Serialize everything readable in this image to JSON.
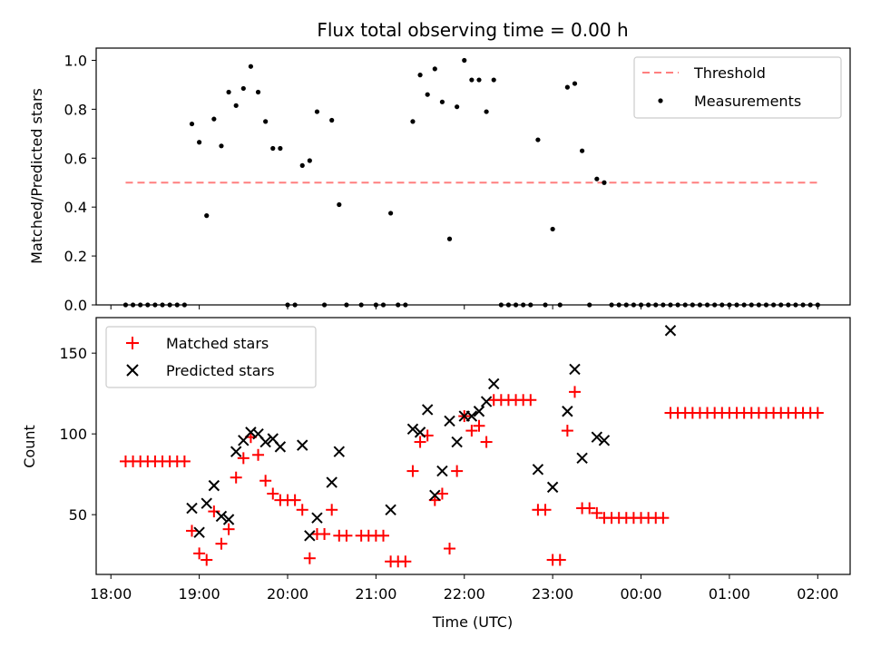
{
  "chart_data": [
    {
      "type": "scatter",
      "title": "Flux total observing time = 0.00 h",
      "xlabel": "",
      "ylabel": "Matched/Predicted stars",
      "ylim": [
        0,
        1.05
      ],
      "yticks": [
        "0.0",
        "0.2",
        "0.4",
        "0.6",
        "0.8",
        "1.0"
      ],
      "xticks_shown": false,
      "legend": {
        "placement": "top-right",
        "entries": [
          "Threshold",
          "Measurements"
        ]
      },
      "threshold": {
        "name": "Threshold",
        "value": 0.5,
        "x_start": "18:10",
        "x_end": "02:02",
        "color": "#ff7f7f",
        "style": "dashed"
      },
      "series": [
        {
          "name": "Measurements",
          "color": "#000000",
          "points": [
            [
              "18:10",
              0
            ],
            [
              "18:15",
              0
            ],
            [
              "18:20",
              0
            ],
            [
              "18:25",
              0
            ],
            [
              "18:30",
              0
            ],
            [
              "18:35",
              0
            ],
            [
              "18:40",
              0
            ],
            [
              "18:45",
              0
            ],
            [
              "18:50",
              0
            ],
            [
              "18:55",
              0.74
            ],
            [
              "19:00",
              0.665
            ],
            [
              "19:05",
              0.365
            ],
            [
              "19:10",
              0.76
            ],
            [
              "19:15",
              0.65
            ],
            [
              "19:20",
              0.87
            ],
            [
              "19:25",
              0.815
            ],
            [
              "19:30",
              0.885
            ],
            [
              "19:35",
              0.975
            ],
            [
              "19:40",
              0.87
            ],
            [
              "19:45",
              0.75
            ],
            [
              "19:50",
              0.64
            ],
            [
              "19:55",
              0.64
            ],
            [
              "20:00",
              0
            ],
            [
              "20:05",
              0
            ],
            [
              "20:10",
              0.57
            ],
            [
              "20:15",
              0.59
            ],
            [
              "20:20",
              0.79
            ],
            [
              "20:25",
              0
            ],
            [
              "20:30",
              0.755
            ],
            [
              "20:35",
              0.41
            ],
            [
              "20:40",
              0
            ],
            [
              "20:50",
              0
            ],
            [
              "21:00",
              0
            ],
            [
              "21:05",
              0
            ],
            [
              "21:10",
              0.375
            ],
            [
              "21:15",
              0
            ],
            [
              "21:20",
              0
            ],
            [
              "21:25",
              0.75
            ],
            [
              "21:30",
              0.94
            ],
            [
              "21:35",
              0.86
            ],
            [
              "21:40",
              0.965
            ],
            [
              "21:45",
              0.83
            ],
            [
              "21:50",
              0.27
            ],
            [
              "21:55",
              0.81
            ],
            [
              "22:00",
              1.0
            ],
            [
              "22:05",
              0.92
            ],
            [
              "22:10",
              0.92
            ],
            [
              "22:15",
              0.79
            ],
            [
              "22:20",
              0.92
            ],
            [
              "22:25",
              0
            ],
            [
              "22:30",
              0
            ],
            [
              "22:35",
              0
            ],
            [
              "22:40",
              0
            ],
            [
              "22:45",
              0
            ],
            [
              "22:50",
              0.675
            ],
            [
              "22:55",
              0
            ],
            [
              "23:00",
              0.31
            ],
            [
              "23:05",
              0
            ],
            [
              "23:10",
              0.89
            ],
            [
              "23:15",
              0.905
            ],
            [
              "23:20",
              0.63
            ],
            [
              "23:25",
              0
            ],
            [
              "23:30",
              0.515
            ],
            [
              "23:35",
              0.5
            ],
            [
              "23:40",
              0
            ],
            [
              "23:45",
              0
            ],
            [
              "23:50",
              0
            ],
            [
              "23:55",
              0
            ],
            [
              "00:00",
              0
            ],
            [
              "00:05",
              0
            ],
            [
              "00:10",
              0
            ],
            [
              "00:15",
              0
            ],
            [
              "00:20",
              0
            ],
            [
              "00:25",
              0
            ],
            [
              "00:30",
              0
            ],
            [
              "00:35",
              0
            ],
            [
              "00:40",
              0
            ],
            [
              "00:45",
              0
            ],
            [
              "00:50",
              0
            ],
            [
              "00:55",
              0
            ],
            [
              "01:00",
              0
            ],
            [
              "01:05",
              0
            ],
            [
              "01:10",
              0
            ],
            [
              "01:15",
              0
            ],
            [
              "01:20",
              0
            ],
            [
              "01:25",
              0
            ],
            [
              "01:30",
              0
            ],
            [
              "01:35",
              0
            ],
            [
              "01:40",
              0
            ],
            [
              "01:45",
              0
            ],
            [
              "01:50",
              0
            ],
            [
              "01:55",
              0
            ],
            [
              "02:00",
              0
            ]
          ]
        }
      ]
    },
    {
      "type": "scatter",
      "title": "",
      "xlabel": "Time (UTC)",
      "ylabel": "Count",
      "ylim": [
        13,
        172
      ],
      "yticks": [
        "50",
        "100",
        "150"
      ],
      "xlim": [
        "17:50",
        "02:22"
      ],
      "xticks": [
        "18:00",
        "19:00",
        "20:00",
        "21:00",
        "22:00",
        "23:00",
        "00:00",
        "01:00",
        "02:00"
      ],
      "legend": {
        "placement": "top-left",
        "entries": [
          "Matched stars",
          "Predicted stars"
        ]
      },
      "series": [
        {
          "name": "Matched stars",
          "marker": "+",
          "color": "#ff0000",
          "points": [
            [
              "18:10",
              83
            ],
            [
              "18:15",
              83
            ],
            [
              "18:20",
              83
            ],
            [
              "18:25",
              83
            ],
            [
              "18:30",
              83
            ],
            [
              "18:35",
              83
            ],
            [
              "18:40",
              83
            ],
            [
              "18:45",
              83
            ],
            [
              "18:50",
              83
            ],
            [
              "18:55",
              40
            ],
            [
              "19:00",
              26
            ],
            [
              "19:05",
              22
            ],
            [
              "19:10",
              52
            ],
            [
              "19:15",
              32
            ],
            [
              "19:20",
              41
            ],
            [
              "19:25",
              73
            ],
            [
              "19:30",
              85
            ],
            [
              "19:35",
              98
            ],
            [
              "19:40",
              87
            ],
            [
              "19:45",
              71
            ],
            [
              "19:50",
              63
            ],
            [
              "19:55",
              59
            ],
            [
              "20:00",
              59
            ],
            [
              "20:05",
              59
            ],
            [
              "20:10",
              53
            ],
            [
              "20:15",
              23
            ],
            [
              "20:20",
              38
            ],
            [
              "20:25",
              38
            ],
            [
              "20:30",
              53
            ],
            [
              "20:35",
              37
            ],
            [
              "20:40",
              37
            ],
            [
              "20:50",
              37
            ],
            [
              "20:55",
              37
            ],
            [
              "21:00",
              37
            ],
            [
              "21:05",
              37
            ],
            [
              "21:10",
              21
            ],
            [
              "21:15",
              21
            ],
            [
              "21:20",
              21
            ],
            [
              "21:25",
              77
            ],
            [
              "21:30",
              95
            ],
            [
              "21:35",
              99
            ],
            [
              "21:40",
              59
            ],
            [
              "21:45",
              63
            ],
            [
              "21:50",
              29
            ],
            [
              "21:55",
              77
            ],
            [
              "22:00",
              111
            ],
            [
              "22:05",
              102
            ],
            [
              "22:10",
              105
            ],
            [
              "22:15",
              95
            ],
            [
              "22:20",
              121
            ],
            [
              "22:25",
              121
            ],
            [
              "22:30",
              121
            ],
            [
              "22:35",
              121
            ],
            [
              "22:40",
              121
            ],
            [
              "22:45",
              121
            ],
            [
              "22:50",
              53
            ],
            [
              "22:55",
              53
            ],
            [
              "23:00",
              22
            ],
            [
              "23:05",
              22
            ],
            [
              "23:10",
              102
            ],
            [
              "23:15",
              126
            ],
            [
              "23:20",
              54
            ],
            [
              "23:25",
              54
            ],
            [
              "23:30",
              51
            ],
            [
              "23:35",
              48
            ],
            [
              "23:40",
              48
            ],
            [
              "23:45",
              48
            ],
            [
              "23:50",
              48
            ],
            [
              "23:55",
              48
            ],
            [
              "00:00",
              48
            ],
            [
              "00:05",
              48
            ],
            [
              "00:10",
              48
            ],
            [
              "00:15",
              48
            ],
            [
              "00:20",
              113
            ],
            [
              "00:25",
              113
            ],
            [
              "00:30",
              113
            ],
            [
              "00:35",
              113
            ],
            [
              "00:40",
              113
            ],
            [
              "00:45",
              113
            ],
            [
              "00:50",
              113
            ],
            [
              "00:55",
              113
            ],
            [
              "01:00",
              113
            ],
            [
              "01:05",
              113
            ],
            [
              "01:10",
              113
            ],
            [
              "01:15",
              113
            ],
            [
              "01:20",
              113
            ],
            [
              "01:25",
              113
            ],
            [
              "01:30",
              113
            ],
            [
              "01:35",
              113
            ],
            [
              "01:40",
              113
            ],
            [
              "01:45",
              113
            ],
            [
              "01:50",
              113
            ],
            [
              "01:55",
              113
            ],
            [
              "02:00",
              113
            ]
          ]
        },
        {
          "name": "Predicted stars",
          "marker": "x",
          "color": "#000000",
          "points": [
            [
              "18:55",
              54
            ],
            [
              "19:00",
              39
            ],
            [
              "19:05",
              57
            ],
            [
              "19:10",
              68
            ],
            [
              "19:15",
              49
            ],
            [
              "19:20",
              47
            ],
            [
              "19:25",
              89
            ],
            [
              "19:30",
              96
            ],
            [
              "19:35",
              101
            ],
            [
              "19:40",
              100
            ],
            [
              "19:45",
              95
            ],
            [
              "19:50",
              97
            ],
            [
              "19:55",
              92
            ],
            [
              "20:10",
              93
            ],
            [
              "20:15",
              37
            ],
            [
              "20:20",
              48
            ],
            [
              "20:30",
              70
            ],
            [
              "20:35",
              89
            ],
            [
              "21:10",
              53
            ],
            [
              "21:25",
              103
            ],
            [
              "21:30",
              101
            ],
            [
              "21:35",
              115
            ],
            [
              "21:40",
              62
            ],
            [
              "21:45",
              77
            ],
            [
              "21:50",
              108
            ],
            [
              "21:55",
              95
            ],
            [
              "22:00",
              111
            ],
            [
              "22:05",
              111
            ],
            [
              "22:10",
              114
            ],
            [
              "22:15",
              120
            ],
            [
              "22:20",
              131
            ],
            [
              "22:50",
              78
            ],
            [
              "23:00",
              67
            ],
            [
              "23:10",
              114
            ],
            [
              "23:15",
              140
            ],
            [
              "23:20",
              85
            ],
            [
              "23:30",
              98
            ],
            [
              "23:35",
              96
            ],
            [
              "00:20",
              164
            ]
          ]
        }
      ]
    }
  ]
}
